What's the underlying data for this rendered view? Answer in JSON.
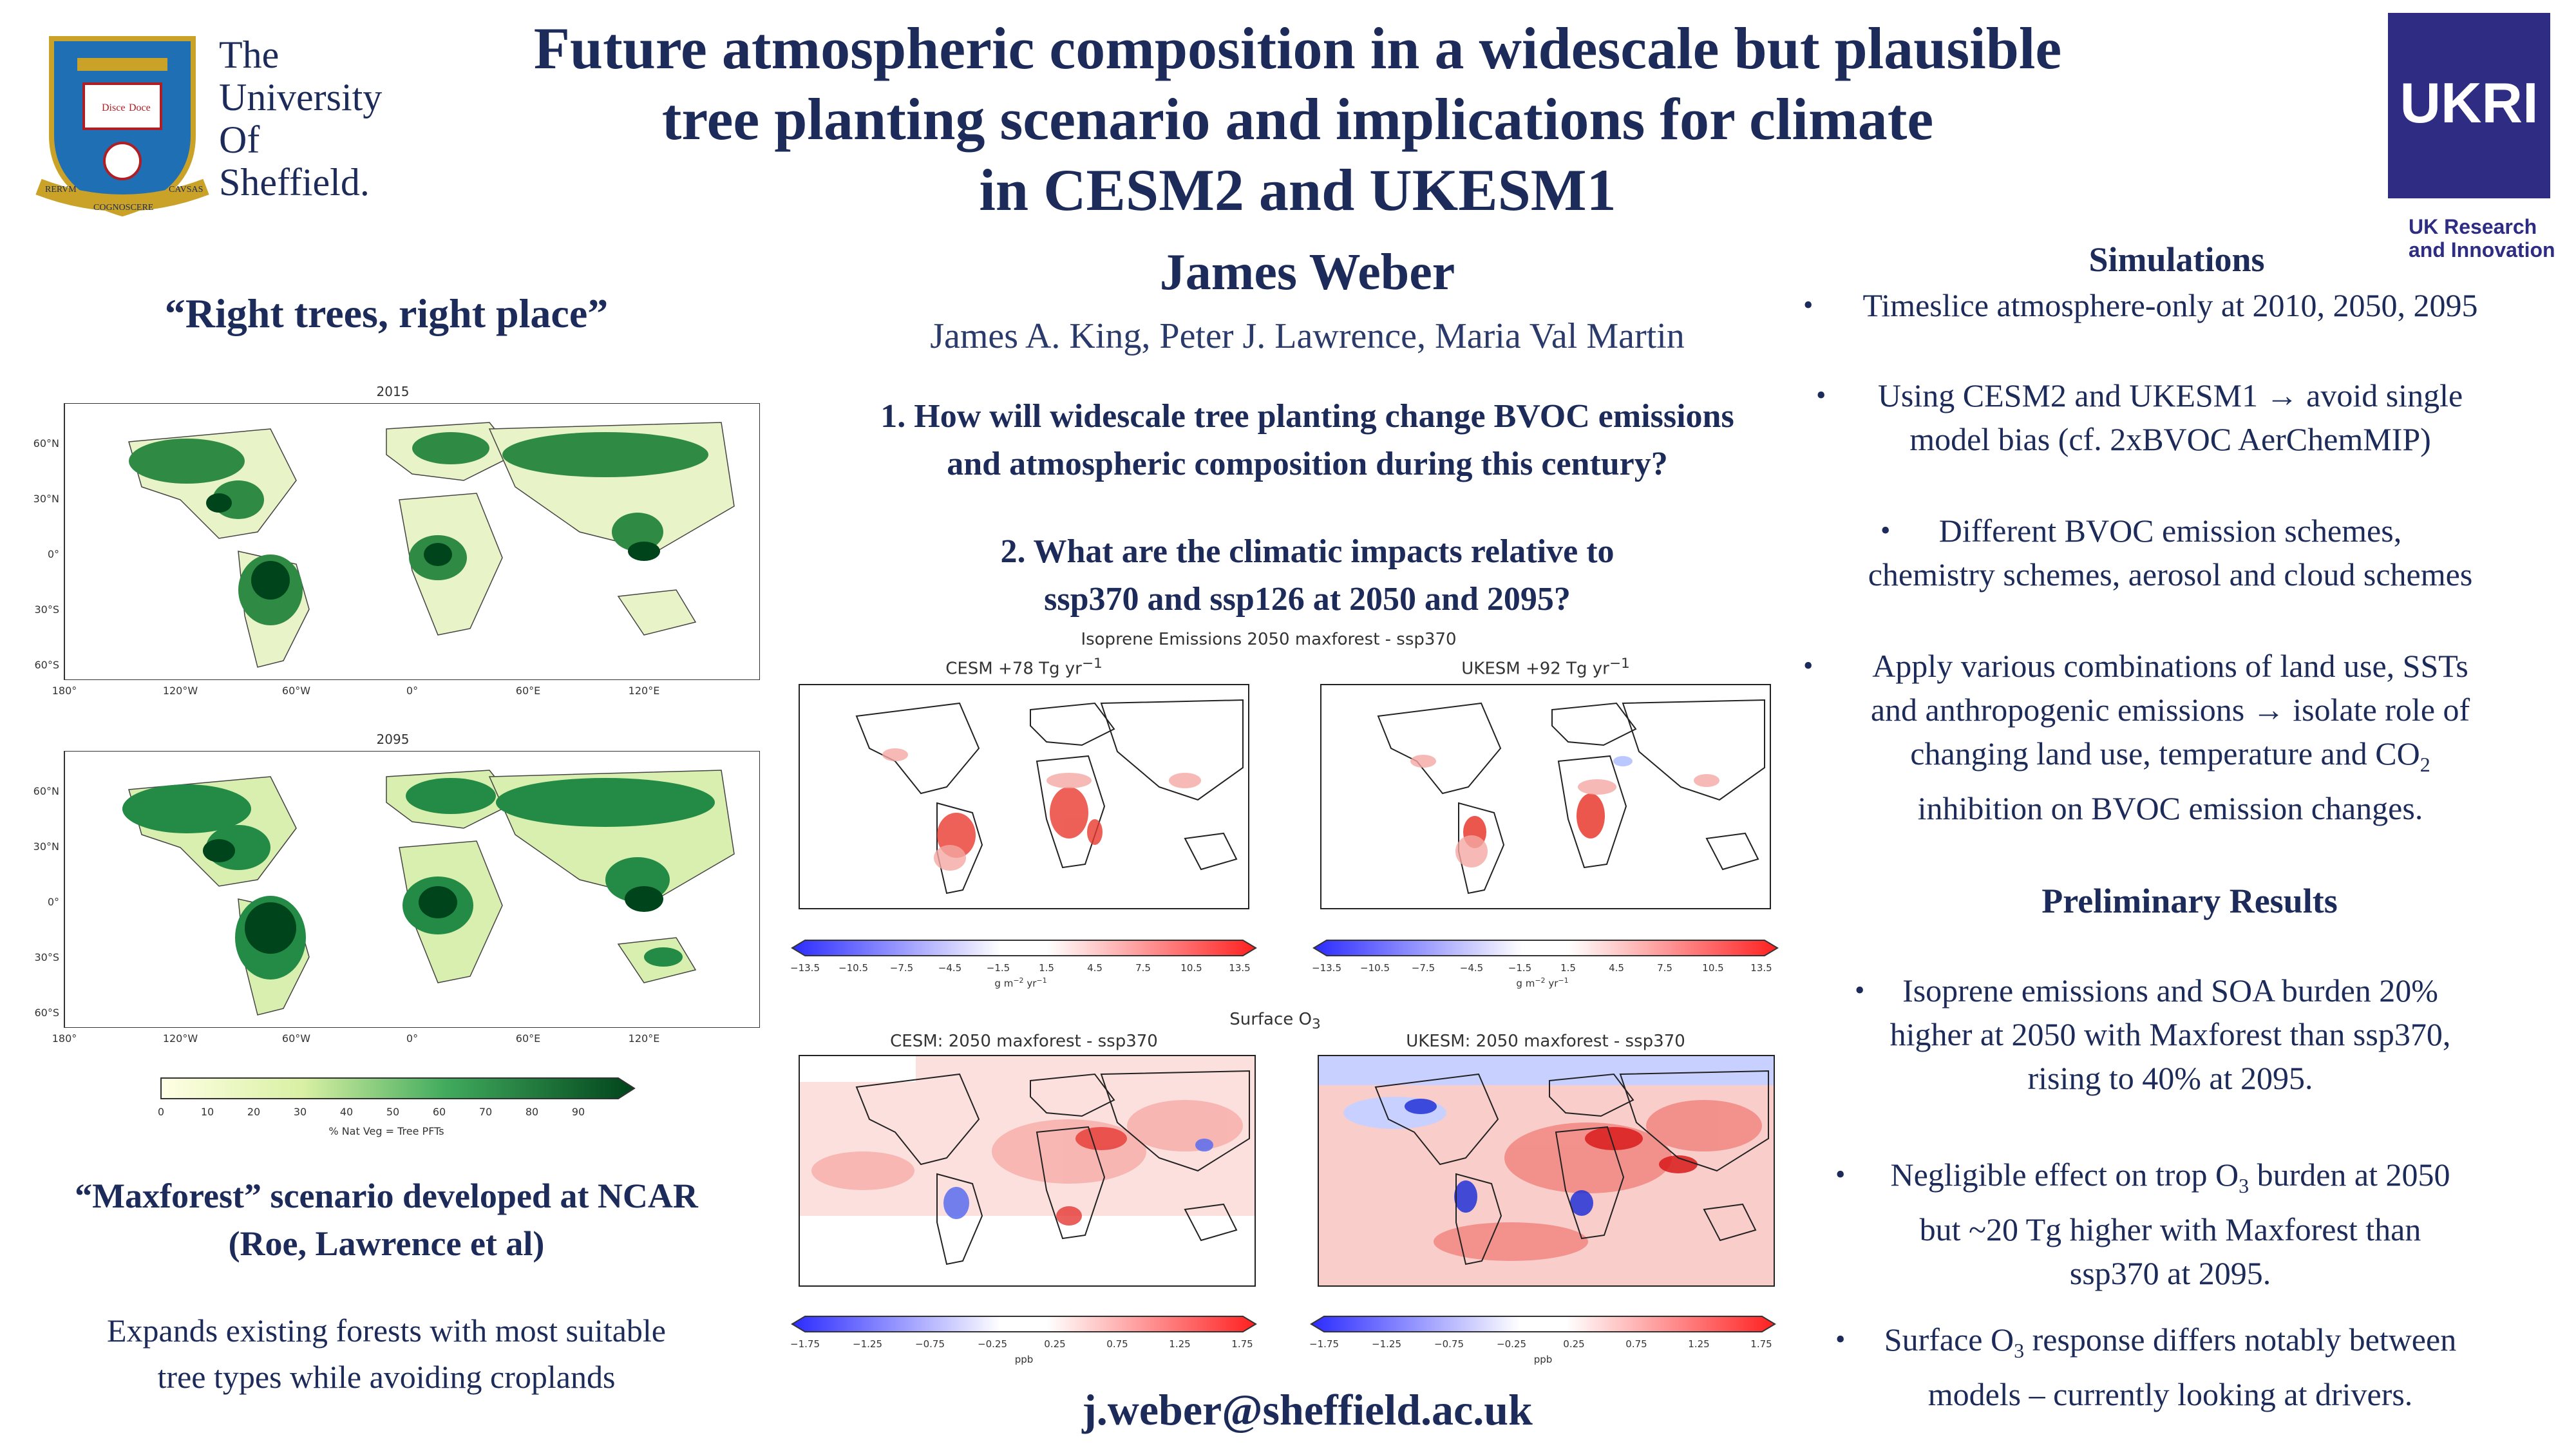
{
  "header": {
    "title": "Future atmospheric composition in a widescale but plausible tree planting scenario and implications for climate in CESM2 and UKESM1",
    "title_lines": [
      "Future atmospheric composition in a widescale but plausible",
      "tree planting scenario and implications for climate",
      "in CESM2 and UKESM1"
    ],
    "university_name_lines": [
      "The",
      "University",
      "Of",
      "Sheffield."
    ],
    "crest_motto": [
      "Disce",
      "Doce",
      "RERVM",
      "COGNOSCERE",
      "CAVSAS"
    ],
    "ukri_mark": "UKRI",
    "ukri_sub_lines": [
      "UK Research",
      "and Innovation"
    ]
  },
  "left": {
    "tagline": "“Right trees, right place”",
    "map_2015_title": "2015",
    "map_2095_title": "2095",
    "lat_ticks": [
      "60°N",
      "30°N",
      "0°",
      "30°S",
      "60°S"
    ],
    "lon_ticks": [
      "180°",
      "120°W",
      "60°W",
      "0°",
      "60°E",
      "120°E"
    ],
    "colorbar_ticks": [
      "0",
      "10",
      "20",
      "30",
      "40",
      "50",
      "60",
      "70",
      "80",
      "90"
    ],
    "colorbar_label": "% Nat Veg = Tree PFTs",
    "subtitle_line1": "“Maxforest” scenario developed at NCAR",
    "subtitle_line2": "(Roe, Lawrence et al)",
    "desc_line1": "Expands existing forests with most suitable",
    "desc_line2": "tree types while avoiding croplands"
  },
  "middle": {
    "author": "James Weber",
    "coauthors": "James A. King, Peter J. Lawrence, Maria Val Martin",
    "q1_line1": "1. How will widescale tree planting change BVOC emissions",
    "q1_line2": "and atmospheric composition during this century?",
    "q2_line1": "2. What are the climatic impacts relative to",
    "q2_line2": "ssp370 and ssp126 at 2050 and 2095?",
    "iso_suptitle": "Isoprene Emissions 2050 maxforest - ssp370",
    "iso_cesm_title": "CESM +78 Tg yr",
    "iso_ukesm_title": "UKESM +92 Tg yr",
    "iso_ticks": [
      "−13.5",
      "−10.5",
      "−7.5",
      "−4.5",
      "−1.5",
      "1.5",
      "4.5",
      "7.5",
      "10.5",
      "13.5"
    ],
    "iso_unit": "g m",
    "o3_suptitle": "Surface O",
    "o3_cesm_title": "CESM: 2050 maxforest - ssp370",
    "o3_ukesm_title": "UKESM: 2050 maxforest - ssp370",
    "o3_ticks": [
      "−1.75",
      "−1.25",
      "−0.75",
      "−0.25",
      "0.25",
      "0.75",
      "1.25",
      "1.75"
    ],
    "o3_unit": "ppb",
    "email": "j.weber@sheffield.ac.uk"
  },
  "right": {
    "sim_heading": "Simulations",
    "sim_bullets": [
      [
        "Timeslice atmosphere-only at 2010, 2050, 2095"
      ],
      [
        "Using CESM2 and UKESM1 → avoid single",
        "model bias (cf. 2xBVOC AerChemMIP)"
      ],
      [
        "Different BVOC emission schemes,",
        "chemistry schemes, aerosol and cloud schemes"
      ],
      [
        "Apply various combinations of land use, SSTs",
        "and anthropogenic emissions → isolate role of",
        "changing land use, temperature and CO",
        "inhibition on BVOC emission changes."
      ]
    ],
    "res_heading": "Preliminary Results",
    "res_bullets": [
      [
        "Isoprene emissions and SOA burden 20%",
        "higher at 2050 with Maxforest than ssp370,",
        "rising to 40% at 2095."
      ],
      [
        "Negligible effect on trop O",
        "but ~20 Tg higher with Maxforest than",
        "ssp370 at 2095."
      ],
      [
        "Surface O",
        "models – currently looking at drivers."
      ]
    ],
    "res_b2_tail": " burden at 2050",
    "res_b3_tail": " response differs notably between",
    "sub_2": "2",
    "sub_3": "3",
    "sup_neg1": "−1",
    "sup_neg2": "−2"
  },
  "colors": {
    "navy": "#1c2b5a",
    "ukri_purple": "#2e2d83",
    "forest_dark": "#00441b",
    "forest_light": "#ffffe5",
    "red": "#d7191c",
    "blue": "#2b2bff"
  }
}
